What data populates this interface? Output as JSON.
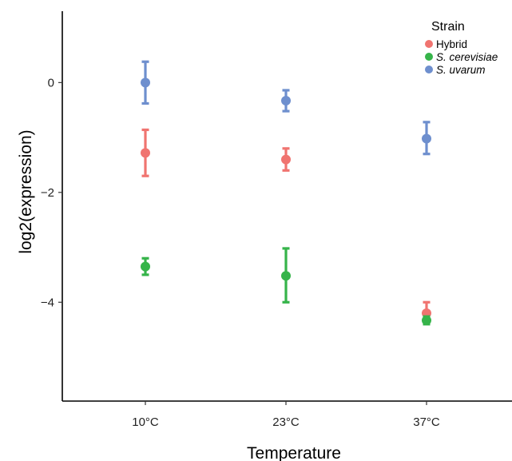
{
  "chart_data": {
    "type": "scatter",
    "xlabel": "Temperature",
    "ylabel": "log2(expression)",
    "categories": [
      "10°C",
      "23°C",
      "37°C"
    ],
    "yticks": [
      -4,
      -2,
      0
    ],
    "ylim": [
      -5.8,
      1.3
    ],
    "grid": false,
    "legend": {
      "title": "Strain",
      "placement": "top-right"
    },
    "series": [
      {
        "name": "Hybrid",
        "italic": false,
        "color": "#f07470",
        "values": [
          -1.28,
          -1.4,
          -4.2
        ],
        "lower": [
          -1.7,
          -1.6,
          -4.32
        ],
        "upper": [
          -0.86,
          -1.2,
          -4.0
        ]
      },
      {
        "name": "S. cerevisiae",
        "italic": true,
        "color": "#36b44a",
        "values": [
          -3.35,
          -3.52,
          -4.33
        ],
        "lower": [
          -3.5,
          -4.0,
          -4.4
        ],
        "upper": [
          -3.2,
          -3.02,
          -4.26
        ]
      },
      {
        "name": "S. uvarum",
        "italic": true,
        "color": "#6e8fce",
        "values": [
          0.0,
          -0.33,
          -1.02
        ],
        "lower": [
          -0.38,
          -0.52,
          -1.3
        ],
        "upper": [
          0.38,
          -0.14,
          -0.72
        ]
      }
    ]
  }
}
